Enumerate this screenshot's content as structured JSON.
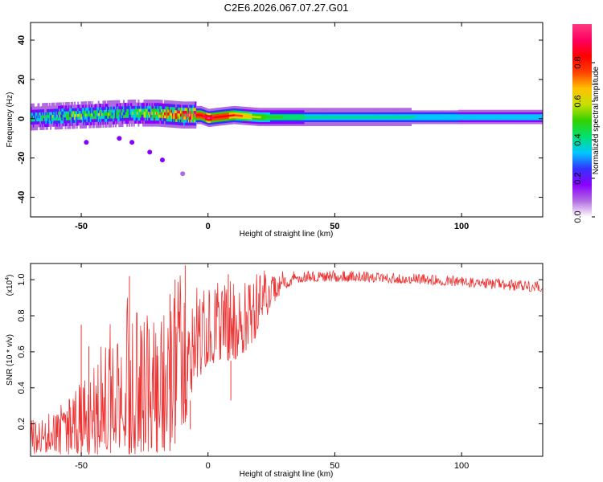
{
  "figure": {
    "title": "C2E6.2026.067.07.27.G01"
  },
  "colorbar": {
    "label": "Normalized spectral amplitude",
    "ticks": [
      "0.0",
      "0.2",
      "0.4",
      "0.6",
      "0.8"
    ],
    "tick_values": [
      0.0,
      0.2,
      0.4,
      0.6,
      0.8
    ],
    "range": [
      0,
      1
    ],
    "colormap": [
      "#ffffff",
      "#b06be0",
      "#8a00ff",
      "#3333ff",
      "#00c8ff",
      "#00e070",
      "#35d000",
      "#c8e000",
      "#ffc000",
      "#ff4000",
      "#ff0000",
      "#ff0060",
      "#ff3a80"
    ]
  },
  "chart_data": [
    {
      "type": "heatmap",
      "name": "spectrogram",
      "xlabel": "Height of straight line (km)",
      "ylabel": "Frequency (Hz)",
      "xlim": [
        -70,
        132
      ],
      "ylim": [
        -50,
        49
      ],
      "x_ticks": [
        -50,
        0,
        50,
        100
      ],
      "x_tick_labels": [
        "-50",
        "0",
        "50",
        "100"
      ],
      "y_ticks": [
        -40,
        -20,
        0,
        20,
        40
      ],
      "y_tick_labels": [
        "-40",
        "-20",
        "0",
        "20",
        "40"
      ],
      "ridge": {
        "description": "narrow band near 0 Hz",
        "x": [
          -70,
          -60,
          -50,
          -40,
          -30,
          -20,
          -10,
          -3,
          0,
          3,
          10,
          20,
          30,
          50,
          75,
          100,
          132
        ],
        "center_hz": [
          1.0,
          1.5,
          2.0,
          2.5,
          3.0,
          3.0,
          2.0,
          2.0,
          0.5,
          1.0,
          2.0,
          1.0,
          1.0,
          1.0,
          1.0,
          1.0,
          1.0
        ],
        "peak_amplitude": [
          0.35,
          0.4,
          0.45,
          0.4,
          0.42,
          0.55,
          0.78,
          0.85,
          0.97,
          0.85,
          0.8,
          0.55,
          0.45,
          0.4,
          0.38,
          0.36,
          0.35
        ]
      },
      "scattered_blobs": [
        {
          "x": -48,
          "y": -12,
          "amplitude": 0.15
        },
        {
          "x": -35,
          "y": -10,
          "amplitude": 0.14
        },
        {
          "x": -30,
          "y": -12,
          "amplitude": 0.2
        },
        {
          "x": -23,
          "y": -17,
          "amplitude": 0.18
        },
        {
          "x": -18,
          "y": -21,
          "amplitude": 0.2
        },
        {
          "x": -10,
          "y": -28,
          "amplitude": 0.08
        }
      ]
    },
    {
      "type": "line",
      "name": "snr",
      "xlabel": "Height of straight line (km)",
      "ylabel": "SNR (10 * v/v)",
      "multiplier_base": "(x10",
      "multiplier_exponent": "4",
      "multiplier_close": ")",
      "xlim": [
        -70,
        132
      ],
      "ylim": [
        0.02,
        1.09
      ],
      "x_ticks": [
        -50,
        0,
        50,
        100
      ],
      "x_tick_labels": [
        "-50",
        "0",
        "50",
        "100"
      ],
      "y_ticks": [
        0.2,
        0.4,
        0.6,
        0.8,
        1.0
      ],
      "y_tick_labels": [
        "0.2",
        "0.4",
        "0.6",
        "0.8",
        "1.0"
      ],
      "line_color": "#ee3333",
      "envelope": {
        "x": [
          -70,
          -60,
          -50,
          -40,
          -30,
          -20,
          -15,
          -10,
          -5,
          0,
          5,
          10,
          15,
          20,
          25,
          30,
          35,
          40,
          50,
          60,
          75,
          90,
          100,
          110,
          120,
          132
        ],
        "lower": [
          0.03,
          0.03,
          0.03,
          0.03,
          0.03,
          0.04,
          0.05,
          0.15,
          0.45,
          0.5,
          0.55,
          0.55,
          0.6,
          0.7,
          0.85,
          0.95,
          0.98,
          0.99,
          0.99,
          0.99,
          0.98,
          0.97,
          0.96,
          0.95,
          0.94,
          0.93
        ],
        "upper": [
          0.25,
          0.28,
          0.45,
          0.75,
          0.98,
          0.75,
          0.9,
          1.08,
          1.0,
          0.95,
          1.0,
          1.05,
          1.03,
          1.05,
          1.05,
          1.05,
          1.05,
          1.05,
          1.05,
          1.05,
          1.04,
          1.03,
          1.02,
          1.01,
          1.0,
          0.99
        ]
      },
      "spikes": [
        {
          "x": -50,
          "y": 0.75
        },
        {
          "x": -47,
          "y": 0.63
        },
        {
          "x": -31,
          "y": 1.02
        },
        {
          "x": -20,
          "y": 0.63
        },
        {
          "x": -15,
          "y": 0.92
        },
        {
          "x": -13,
          "y": 1.0
        },
        {
          "x": -9,
          "y": 1.08
        },
        {
          "x": -7,
          "y": 0.17
        },
        {
          "x": 8,
          "y": 1.03
        },
        {
          "x": 9,
          "y": 0.33
        }
      ]
    }
  ]
}
